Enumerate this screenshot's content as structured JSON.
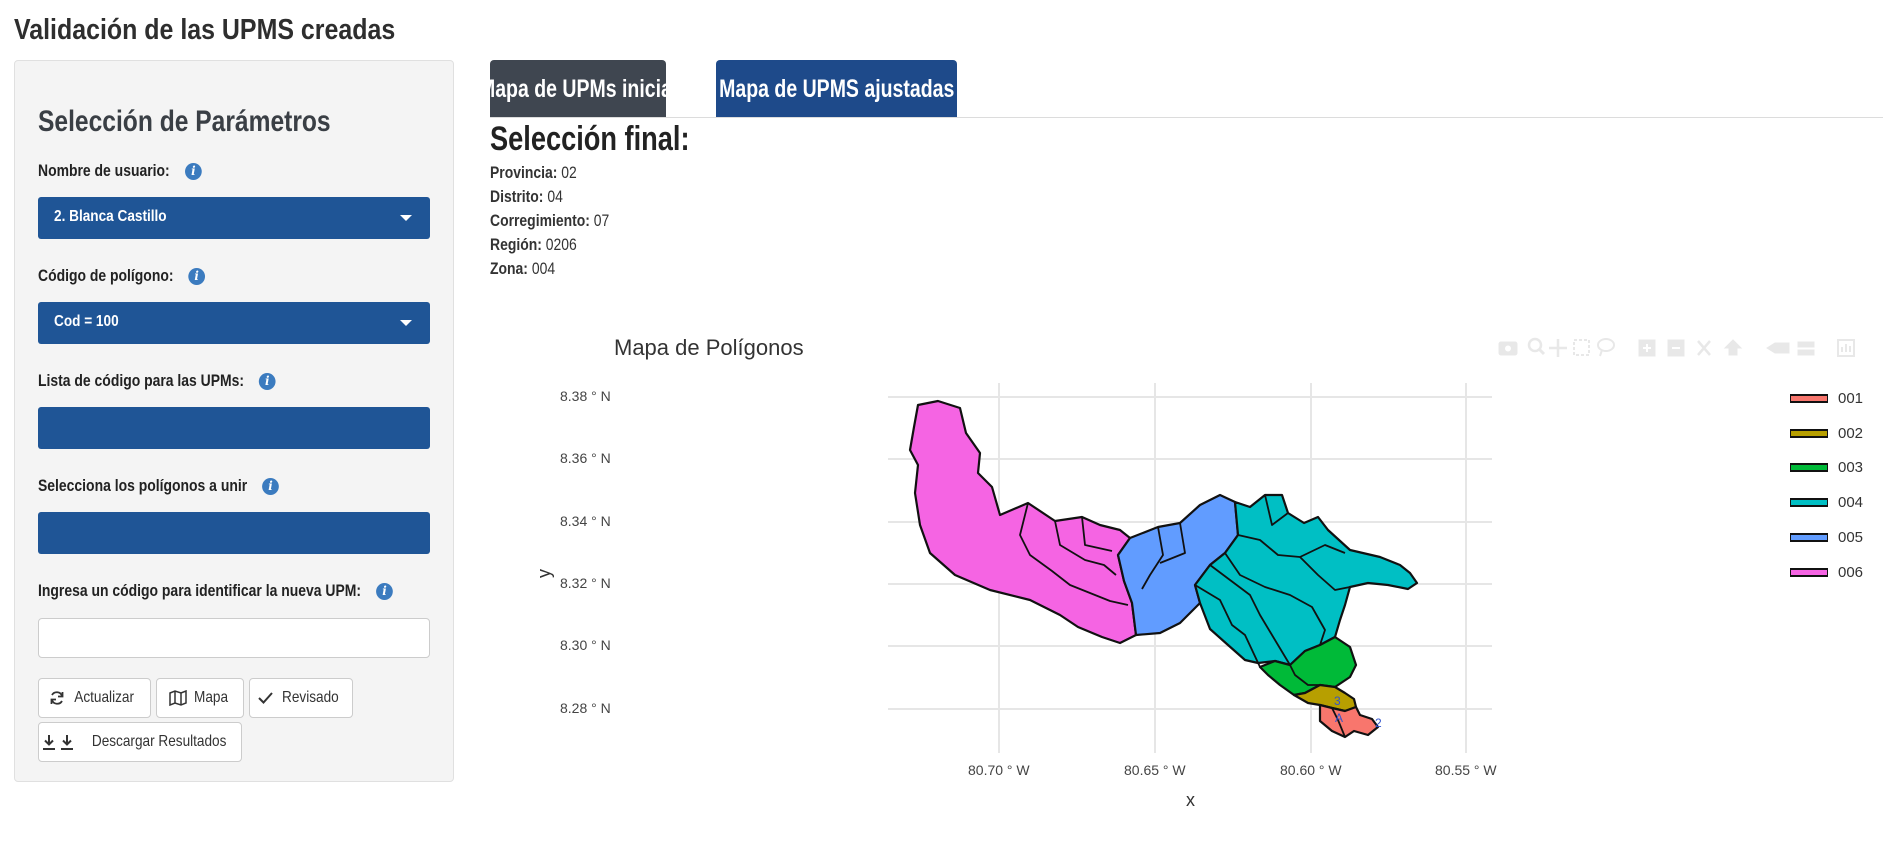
{
  "app": {
    "title": "Validación de las UPMS creadas"
  },
  "sidebar": {
    "title": "Selección de Parámetros",
    "user_label": "Nombre de usuario:",
    "user_value": "2. Blanca Castillo",
    "polygon_label": "Código de polígono:",
    "polygon_value": "Cod = 100",
    "upm_codes_label": "Lista de código para las UPMs:",
    "polygons_to_join_label": "Selecciona los polígonos a unir",
    "new_upm_label": "Ingresa un código para identificar la nueva UPM:",
    "new_upm_value": "",
    "buttons": {
      "update": "Actualizar",
      "map": "Mapa",
      "reviewed": "Revisado",
      "download": "Descargar Resultados"
    }
  },
  "tabs": [
    {
      "label": "Mapa de UPMs inicial",
      "active": false
    },
    {
      "label": "Mapa de UPMS ajustadas",
      "active": true
    }
  ],
  "selection": {
    "title": "Selección final:",
    "rows": [
      {
        "key": "Provincia:",
        "value": "02"
      },
      {
        "key": "Distrito:",
        "value": "04"
      },
      {
        "key": "Corregimiento:",
        "value": "07"
      },
      {
        "key": "Región:",
        "value": "0206"
      },
      {
        "key": "Zona:",
        "value": "004"
      }
    ]
  },
  "map": {
    "title": "Mapa de Polígonos",
    "x_title": "x",
    "y_title": "y",
    "x_ticks": [
      "80.70 ° W",
      "80.65 ° W",
      "80.60 ° W",
      "80.55 ° W"
    ],
    "y_ticks": [
      "8.38 ° N",
      "8.36 ° N",
      "8.34 ° N",
      "8.32 ° N",
      "8.30 ° N",
      "8.28 ° N"
    ],
    "legend": [
      {
        "label": "001",
        "color": "#f8766d"
      },
      {
        "label": "002",
        "color": "#b79f00"
      },
      {
        "label": "003",
        "color": "#00ba38"
      },
      {
        "label": "004",
        "color": "#00bfc4"
      },
      {
        "label": "005",
        "color": "#619cff"
      },
      {
        "label": "006",
        "color": "#f564e3"
      }
    ],
    "modebar_icons": [
      "camera-icon",
      "zoom-icon",
      "pan-icon",
      "box-select-icon",
      "lasso-icon",
      "zoom-in-icon",
      "zoom-out-icon",
      "autoscale-icon",
      "reset-axes-icon",
      "spike-lines-icon",
      "hover-closest-icon",
      "hover-compare-icon",
      "plotly-logo-icon"
    ]
  },
  "colors": {
    "primary": "#1f5596",
    "tab_inactive": "#3f4650",
    "tab_active": "#1e4a8a",
    "info_icon": "#3b7bbf"
  }
}
